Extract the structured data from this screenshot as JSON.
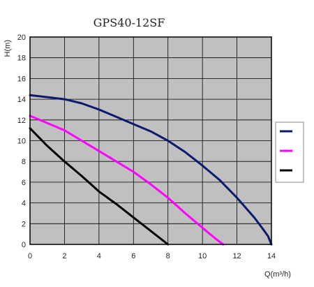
{
  "chart_data": {
    "type": "line",
    "title": "GPS40-12SF",
    "xlabel": "Q(m³/h)",
    "ylabel": "H(m)",
    "xlim": [
      0,
      14
    ],
    "ylim": [
      0,
      20
    ],
    "xticks": [
      0,
      2,
      4,
      6,
      8,
      10,
      12,
      14
    ],
    "yticks": [
      0,
      2,
      4,
      6,
      8,
      10,
      12,
      14,
      16,
      18,
      20
    ],
    "grid": true,
    "background": "#c0c0c0",
    "legend_position": "right",
    "series": [
      {
        "color": "#0a1a6e",
        "x": [
          0,
          1,
          2,
          3,
          4,
          5,
          6,
          7,
          8,
          9,
          10,
          11,
          12,
          13,
          13.5,
          13.8,
          14
        ],
        "y": [
          14.4,
          14.2,
          14.0,
          13.6,
          13.0,
          12.3,
          11.6,
          10.9,
          10.0,
          8.9,
          7.6,
          6.2,
          4.5,
          2.6,
          1.5,
          0.8,
          0
        ]
      },
      {
        "color": "#ff00ff",
        "x": [
          0,
          1,
          2,
          3,
          4,
          5,
          6,
          7,
          8,
          9,
          10,
          10.8,
          11.2
        ],
        "y": [
          12.4,
          11.7,
          11.0,
          10.0,
          9.0,
          8.0,
          7.0,
          5.8,
          4.5,
          3.0,
          1.6,
          0.5,
          0
        ]
      },
      {
        "color": "#000000",
        "x": [
          0,
          1,
          2,
          3,
          4,
          5,
          6,
          7,
          8
        ],
        "y": [
          11.2,
          9.5,
          8.0,
          6.6,
          5.1,
          3.9,
          2.6,
          1.3,
          0
        ]
      }
    ]
  }
}
